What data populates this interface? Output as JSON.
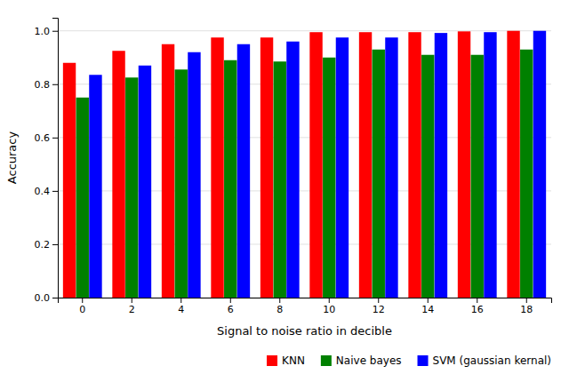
{
  "chart_data": {
    "type": "bar",
    "categories": [
      0,
      2,
      4,
      6,
      8,
      10,
      12,
      14,
      16,
      18
    ],
    "series": [
      {
        "name": "KNN",
        "color": "#ff0000",
        "values": [
          0.88,
          0.925,
          0.95,
          0.975,
          0.975,
          0.995,
          0.995,
          0.995,
          0.998,
          1.0
        ]
      },
      {
        "name": "Naive bayes",
        "color": "#008000",
        "values": [
          0.75,
          0.825,
          0.855,
          0.89,
          0.885,
          0.9,
          0.93,
          0.91,
          0.91,
          0.93
        ]
      },
      {
        "name": "SVM (gaussian kernal)",
        "color": "#0000ff",
        "values": [
          0.835,
          0.87,
          0.92,
          0.95,
          0.96,
          0.975,
          0.975,
          0.992,
          0.995,
          1.0
        ]
      }
    ],
    "xlabel": "Signal to noise ratio in decible",
    "ylabel": "Accuracy",
    "ylim": [
      0.0,
      1.049
    ],
    "yticks": [
      {
        "value": 0.0,
        "label": "0.0"
      },
      0.2,
      0.4,
      0.6,
      0.8,
      {
        "value": 1.0,
        "label": "1.0"
      }
    ],
    "grid": true,
    "legend": "lower right"
  }
}
